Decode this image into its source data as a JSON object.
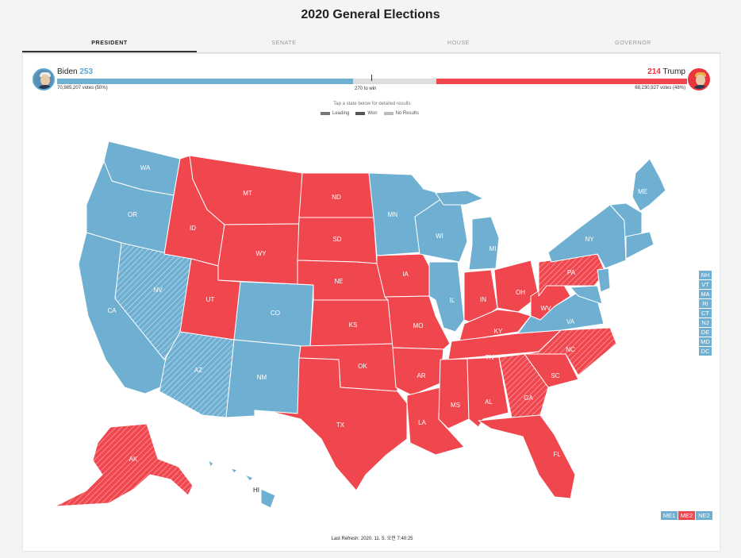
{
  "title": "2020 General Elections",
  "tabs": [
    "PRESIDENT",
    "SENATE",
    "HOUSE",
    "GOVERNOR"
  ],
  "candidates": {
    "left": {
      "name": "Biden",
      "ev": "253",
      "votes": "70,985,207 votes (50%)",
      "color": "#6fb0d2"
    },
    "right": {
      "name": "Trump",
      "ev": "214",
      "votes": "68,230,927 votes (48%)",
      "color": "#f0464e"
    }
  },
  "threshold_label": "270 to win",
  "electoral_progress": {
    "biden_ev": 253,
    "trump_ev": 214,
    "total_ev": 538
  },
  "hint": "Tap a state below for detailed results",
  "legend": [
    {
      "label": "Leading",
      "color": "#777"
    },
    {
      "label": "Won",
      "color": "#555"
    },
    {
      "label": "No Results",
      "color": "#bbb"
    }
  ],
  "states": {
    "WA": "WA",
    "OR": "OR",
    "CA": "CA",
    "NV": "NV",
    "ID": "ID",
    "MT": "MT",
    "WY": "WY",
    "UT": "UT",
    "AZ": "AZ",
    "CO": "CO",
    "NM": "NM",
    "ND": "ND",
    "SD": "SD",
    "NE": "NE",
    "KS": "KS",
    "OK": "OK",
    "TX": "TX",
    "MN": "MN",
    "IA": "IA",
    "MO": "MO",
    "AR": "AR",
    "LA": "LA",
    "WI": "WI",
    "IL": "IL",
    "MI": "MI",
    "IN": "IN",
    "OH": "OH",
    "KY": "KY",
    "TN": "TN",
    "MS": "MS",
    "AL": "AL",
    "GA": "GA",
    "FL": "FL",
    "SC": "SC",
    "NC": "NC",
    "VA": "VA",
    "WV": "WV",
    "PA": "PA",
    "NY": "NY",
    "ME": "ME",
    "AK": "AK",
    "HI": "HI"
  },
  "small_states": [
    "NH",
    "VT",
    "MA",
    "RI",
    "CT",
    "NJ",
    "DE",
    "MD",
    "DC"
  ],
  "districts": [
    {
      "label": "ME1",
      "color": "#6fb0d2"
    },
    {
      "label": "ME2",
      "color": "#f0464e"
    },
    {
      "label": "NE2",
      "color": "#6fb0d2"
    }
  ],
  "last_refresh": "Last Refresh: 2020. 11. 5. 오전 7:40:25"
}
